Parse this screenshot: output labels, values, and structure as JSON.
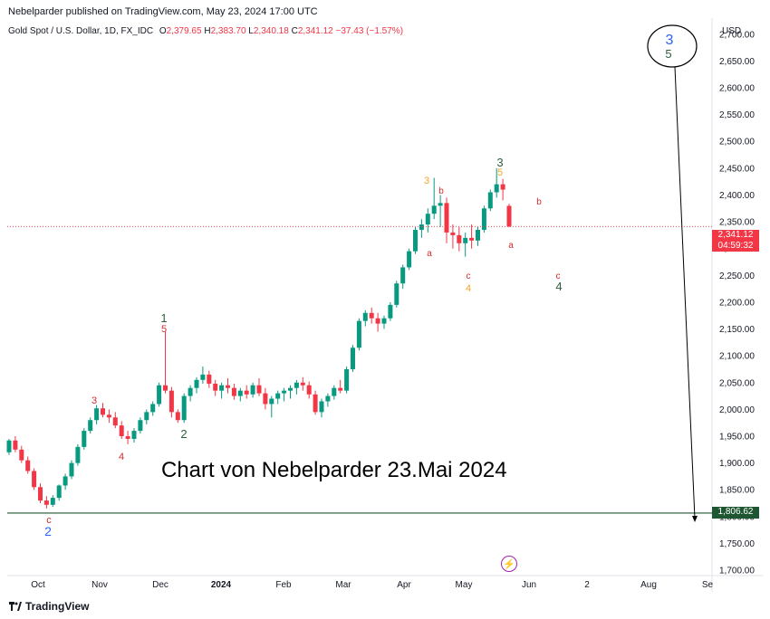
{
  "header": {
    "published": "Nebelparder published on TradingView.com, May 23, 2024 17:00 UTC"
  },
  "symbol": {
    "name": "Gold Spot / U.S. Dollar, 1D, FX_IDC",
    "o_label": "O",
    "o_value": "2,379.65",
    "h_label": "H",
    "h_value": "2,383.70",
    "l_label": "L",
    "l_value": "2,340.18",
    "c_label": "C",
    "c_value": "2,341.12",
    "change": "−37.43 (−1.57%)"
  },
  "axis": {
    "currency": "USD",
    "y_ticks": [
      "2,700.00",
      "2,650.00",
      "2,600.00",
      "2,550.00",
      "2,500.00",
      "2,450.00",
      "2,400.00",
      "2,350.00",
      "2,300.00",
      "2,250.00",
      "2,200.00",
      "2,150.00",
      "2,100.00",
      "2,050.00",
      "2,000.00",
      "1,950.00",
      "1,900.00",
      "1,850.00",
      "1,800.00",
      "1,750.00",
      "1,700.00"
    ],
    "x_ticks": [
      "Oct",
      "Nov",
      "Dec",
      "2024",
      "Feb",
      "Mar",
      "Apr",
      "May",
      "Jun",
      "2",
      "Aug",
      "Se"
    ]
  },
  "price_tags": {
    "current_price": "2,341.12",
    "countdown": "04:59:32",
    "support_level": "1,806.62"
  },
  "annotation_text": "Chart von Nebelparder 23.Mai 2024",
  "footer": {
    "brand": "TradingView"
  },
  "colors": {
    "up": "#089981",
    "down": "#f23645",
    "support": "#1e5631",
    "wave_blue": "#2962ff",
    "wave_green": "#2e5e3a",
    "wave_orange": "#f5a623",
    "wave_red": "#d32f2f"
  },
  "chart_data": {
    "type": "candlestick",
    "title": "Gold Spot / U.S. Dollar, 1D, FX_IDC",
    "ylim": [
      1690,
      2730
    ],
    "support_line": 1806.62,
    "current_price": 2341.12,
    "series": [
      {
        "name": "Gold Spot / U.S. Dollar",
        "points": [
          [
            1920,
            1945,
            1915,
            1942
          ],
          [
            1942,
            1950,
            1920,
            1925
          ],
          [
            1925,
            1932,
            1900,
            1905
          ],
          [
            1905,
            1912,
            1880,
            1885
          ],
          [
            1885,
            1890,
            1850,
            1855
          ],
          [
            1855,
            1862,
            1825,
            1830
          ],
          [
            1830,
            1838,
            1815,
            1822
          ],
          [
            1822,
            1840,
            1818,
            1835
          ],
          [
            1835,
            1860,
            1830,
            1858
          ],
          [
            1858,
            1880,
            1850,
            1875
          ],
          [
            1875,
            1905,
            1870,
            1900
          ],
          [
            1900,
            1935,
            1895,
            1930
          ],
          [
            1930,
            1965,
            1925,
            1960
          ],
          [
            1960,
            1985,
            1955,
            1980
          ],
          [
            1980,
            2008,
            1972,
            2002
          ],
          [
            2002,
            2012,
            1985,
            1990
          ],
          [
            1990,
            2000,
            1975,
            1985
          ],
          [
            1985,
            1995,
            1965,
            1970
          ],
          [
            1970,
            1978,
            1945,
            1950
          ],
          [
            1950,
            1960,
            1935,
            1945
          ],
          [
            1945,
            1965,
            1938,
            1960
          ],
          [
            1960,
            1985,
            1955,
            1980
          ],
          [
            1980,
            2000,
            1972,
            1995
          ],
          [
            1995,
            2015,
            1988,
            2010
          ],
          [
            2010,
            2050,
            2005,
            2045
          ],
          [
            2045,
            2145,
            2030,
            2035
          ],
          [
            2035,
            2042,
            1985,
            1995
          ],
          [
            1995,
            2000,
            1975,
            1980
          ],
          [
            1980,
            2030,
            1975,
            2025
          ],
          [
            2025,
            2045,
            2015,
            2040
          ],
          [
            2040,
            2060,
            2030,
            2055
          ],
          [
            2055,
            2080,
            2048,
            2065
          ],
          [
            2065,
            2072,
            2040,
            2048
          ],
          [
            2048,
            2055,
            2025,
            2035
          ],
          [
            2035,
            2050,
            2020,
            2045
          ],
          [
            2045,
            2058,
            2030,
            2040
          ],
          [
            2040,
            2048,
            2018,
            2025
          ],
          [
            2025,
            2040,
            2015,
            2035
          ],
          [
            2035,
            2045,
            2020,
            2028
          ],
          [
            2028,
            2050,
            2022,
            2045
          ],
          [
            2045,
            2058,
            2025,
            2030
          ],
          [
            2030,
            2040,
            2000,
            2010
          ],
          [
            2010,
            2025,
            1985,
            2020
          ],
          [
            2020,
            2035,
            2010,
            2030
          ],
          [
            2030,
            2040,
            2015,
            2035
          ],
          [
            2035,
            2045,
            2020,
            2040
          ],
          [
            2040,
            2055,
            2028,
            2050
          ],
          [
            2050,
            2060,
            2035,
            2045
          ],
          [
            2045,
            2052,
            2020,
            2028
          ],
          [
            2028,
            2035,
            1990,
            1995
          ],
          [
            1995,
            2020,
            1985,
            2015
          ],
          [
            2015,
            2030,
            2005,
            2025
          ],
          [
            2025,
            2045,
            2018,
            2040
          ],
          [
            2040,
            2055,
            2030,
            2035
          ],
          [
            2035,
            2080,
            2030,
            2075
          ],
          [
            2075,
            2120,
            2070,
            2115
          ],
          [
            2115,
            2170,
            2110,
            2165
          ],
          [
            2165,
            2185,
            2155,
            2180
          ],
          [
            2180,
            2190,
            2160,
            2170
          ],
          [
            2170,
            2180,
            2145,
            2160
          ],
          [
            2160,
            2175,
            2150,
            2170
          ],
          [
            2170,
            2200,
            2165,
            2195
          ],
          [
            2195,
            2240,
            2190,
            2235
          ],
          [
            2235,
            2270,
            2225,
            2265
          ],
          [
            2265,
            2300,
            2260,
            2295
          ],
          [
            2295,
            2340,
            2290,
            2335
          ],
          [
            2335,
            2355,
            2320,
            2345
          ],
          [
            2345,
            2375,
            2330,
            2365
          ],
          [
            2365,
            2432,
            2355,
            2380
          ],
          [
            2380,
            2400,
            2340,
            2385
          ],
          [
            2385,
            2395,
            2310,
            2330
          ],
          [
            2330,
            2345,
            2300,
            2325
          ],
          [
            2325,
            2340,
            2295,
            2310
          ],
          [
            2310,
            2330,
            2285,
            2320
          ],
          [
            2320,
            2345,
            2300,
            2315
          ],
          [
            2315,
            2340,
            2305,
            2335
          ],
          [
            2335,
            2380,
            2330,
            2375
          ],
          [
            2375,
            2410,
            2370,
            2405
          ],
          [
            2405,
            2450,
            2395,
            2420
          ],
          [
            2420,
            2430,
            2390,
            2410
          ],
          [
            2379.65,
            2383.7,
            2340.18,
            2341.12
          ]
        ]
      }
    ],
    "wave_labels": [
      {
        "text": "c",
        "color": "red"
      },
      {
        "text": "2",
        "color": "blue"
      },
      {
        "text": "3",
        "color": "red"
      },
      {
        "text": "4",
        "color": "red"
      },
      {
        "text": "1",
        "color": "green"
      },
      {
        "text": "5",
        "color": "red"
      },
      {
        "text": "2",
        "color": "green"
      },
      {
        "text": "3",
        "color": "orange"
      },
      {
        "text": "b",
        "color": "red"
      },
      {
        "text": "a",
        "color": "red"
      },
      {
        "text": "c",
        "color": "red"
      },
      {
        "text": "4",
        "color": "orange"
      },
      {
        "text": "3",
        "color": "green"
      },
      {
        "text": "5",
        "color": "orange"
      },
      {
        "text": "a",
        "color": "red"
      },
      {
        "text": "b",
        "color": "red"
      },
      {
        "text": "c",
        "color": "red"
      },
      {
        "text": "4",
        "color": "green"
      },
      {
        "text": "3",
        "color": "blue"
      },
      {
        "text": "5",
        "color": "green"
      }
    ]
  }
}
